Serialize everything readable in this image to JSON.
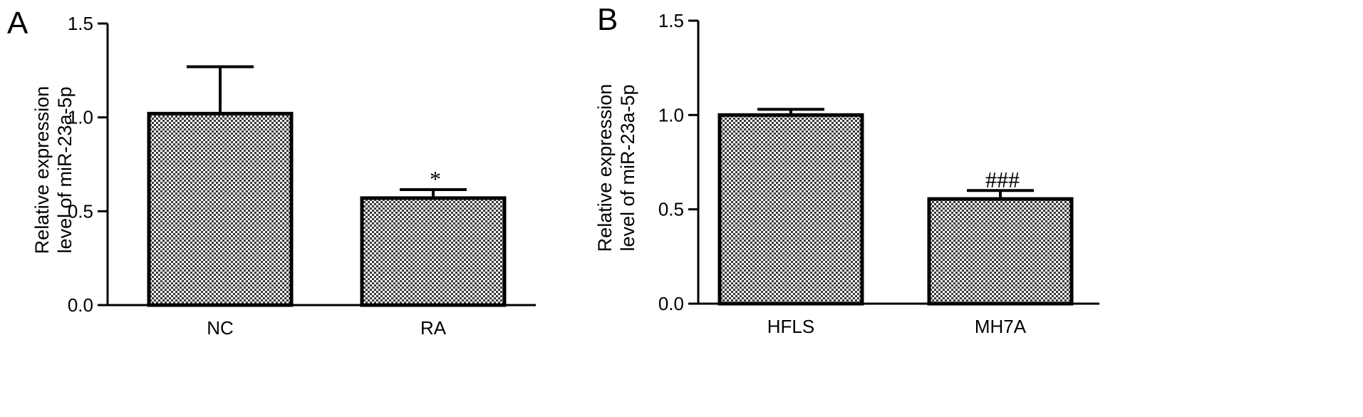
{
  "chart_data": [
    {
      "type": "bar",
      "panel": "A",
      "categories": [
        "NC",
        "RA"
      ],
      "values": [
        1.02,
        0.57
      ],
      "errors": [
        0.25,
        0.045
      ],
      "annotations": [
        "",
        "*"
      ],
      "ylabel": [
        "Relative expression",
        "level of miR-23a-5p"
      ],
      "ylim": [
        0,
        1.5
      ],
      "yticks": [
        "0.0",
        "0.5",
        "1.0",
        "1.5"
      ],
      "grid": false,
      "bar_fill": "crosshatch"
    },
    {
      "type": "bar",
      "panel": "B",
      "categories": [
        "HFLS",
        "MH7A"
      ],
      "values": [
        1.0,
        0.555
      ],
      "errors": [
        0.03,
        0.045
      ],
      "annotations": [
        "",
        "###"
      ],
      "ylabel": [
        "Relative expression",
        "level of miR-23a-5p"
      ],
      "ylim": [
        0,
        1.5
      ],
      "yticks": [
        "0.0",
        "0.5",
        "1.0",
        "1.5"
      ],
      "grid": false,
      "bar_fill": "crosshatch"
    }
  ]
}
